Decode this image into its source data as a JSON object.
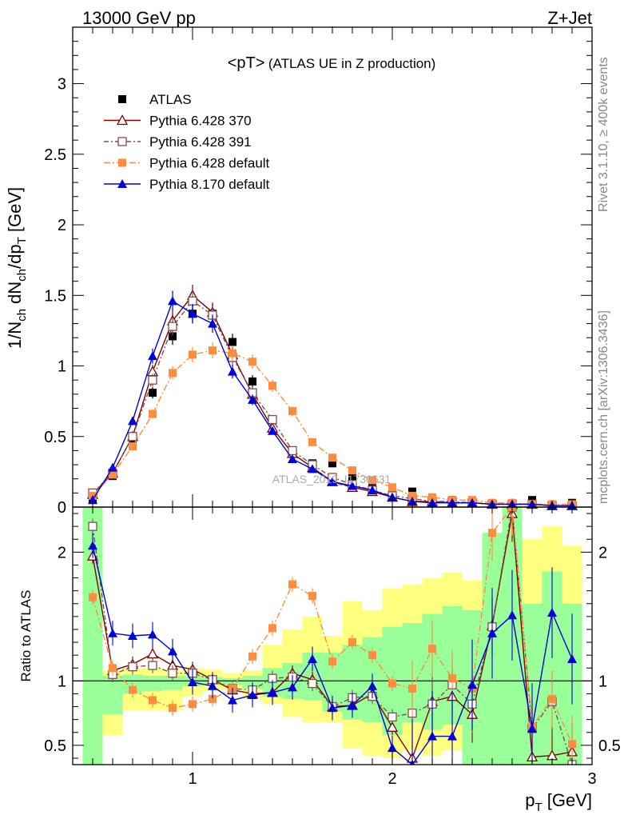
{
  "header": {
    "left": "13000 GeV pp",
    "right": "Z+Jet"
  },
  "side_text": {
    "top": "Rivet 3.1.10, ≥ 400k events",
    "bottom": "mcplots.cern.ch [arXiv:1306.3436]"
  },
  "chart_data": {
    "type": "scatter",
    "title_main": "<pT>",
    "title_sub": "(ATLAS UE in Z production)",
    "ylabel": {
      "main": "1/N",
      "sub1": "ch",
      "mid": " dN",
      "sub2": "ch",
      "tail": "/dp",
      "sub3": "T",
      "unit": " [GeV]"
    },
    "xlabel": {
      "main": "p",
      "sub": "T",
      "unit": " [GeV]"
    },
    "ratio_ylabel": "Ratio to ATLAS",
    "watermark": "ATLAS_2019_I1736531",
    "xlim": [
      0.4,
      3.0
    ],
    "ylim_main": [
      0,
      3.4
    ],
    "ylim_ratio": [
      0.35,
      2.35
    ],
    "x_ticks": [
      "1",
      "2",
      "3"
    ],
    "y_ticks_main": [
      "0",
      "0.5",
      "1",
      "1.5",
      "2",
      "2.5",
      "3"
    ],
    "y_ticks_ratio": [
      "0.5",
      "1",
      "2"
    ],
    "x": [
      0.5,
      0.6,
      0.7,
      0.8,
      0.9,
      1.0,
      1.1,
      1.2,
      1.3,
      1.4,
      1.5,
      1.6,
      1.7,
      1.8,
      1.9,
      2.0,
      2.1,
      2.2,
      2.3,
      2.4,
      2.5,
      2.6,
      2.7,
      2.8,
      2.9
    ],
    "ratio_bands": {
      "yellow_lo": [
        0.35,
        0.58,
        0.77,
        0.77,
        0.77,
        0.88,
        0.92,
        0.94,
        0.86,
        0.82,
        0.72,
        0.68,
        0.68,
        0.48,
        0.42,
        0.4,
        0.46,
        0.42,
        0.46,
        0.4,
        0.35,
        0.35,
        0.35,
        0.35,
        0.35
      ],
      "yellow_hi": [
        2.35,
        1.08,
        1.1,
        1.1,
        1.08,
        1.1,
        1.09,
        1.06,
        1.08,
        1.28,
        1.4,
        1.5,
        1.35,
        1.62,
        1.55,
        1.72,
        1.75,
        1.8,
        1.84,
        1.78,
        1.98,
        2.05,
        2.1,
        2.2,
        2.05
      ],
      "green_lo": [
        0.35,
        0.74,
        0.9,
        0.92,
        0.93,
        0.96,
        0.97,
        0.97,
        0.94,
        0.88,
        0.86,
        0.85,
        0.76,
        0.7,
        0.68,
        0.58,
        0.68,
        0.62,
        0.66,
        0.35,
        0.35,
        0.35,
        0.35,
        0.35,
        0.35
      ],
      "green_hi": [
        2.35,
        1.04,
        1.05,
        1.04,
        1.04,
        1.04,
        1.03,
        1.02,
        1.04,
        1.1,
        1.14,
        1.22,
        1.22,
        1.28,
        1.34,
        1.42,
        1.45,
        1.52,
        1.58,
        1.55,
        2.15,
        2.35,
        1.6,
        1.85,
        1.6
      ]
    },
    "series": [
      {
        "name": "ATLAS",
        "color": "#000000",
        "marker": "square-filled",
        "values": [
          0.05,
          0.22,
          0.47,
          0.81,
          1.21,
          1.37,
          1.37,
          1.17,
          0.89,
          0.62,
          0.4,
          0.31,
          0.31,
          0.21,
          0.14,
          0.11,
          0.11,
          0.06,
          0.05,
          0.04,
          0.02,
          0.01,
          0.05,
          0.02,
          0.03
        ],
        "ratio": []
      },
      {
        "name": "Pythia 6.428 370",
        "color": "#800000",
        "marker": "triangle-open",
        "dash": "",
        "values": [
          0.09,
          0.24,
          0.5,
          0.96,
          1.32,
          1.5,
          1.38,
          1.08,
          0.8,
          0.56,
          0.38,
          0.28,
          0.18,
          0.14,
          0.11,
          0.07,
          0.04,
          0.04,
          0.03,
          0.03,
          0.02,
          0.02,
          0.02,
          0.01,
          0.01
        ],
        "ratio": [
          1.97,
          1.08,
          1.13,
          1.21,
          1.12,
          1.09,
          1.01,
          0.93,
          0.9,
          0.91,
          1.06,
          1.01,
          0.8,
          0.81,
          0.9,
          0.64,
          0.4,
          0.84,
          0.88,
          0.74,
          1.43,
          2.3,
          0.41,
          0.42,
          0.45
        ]
      },
      {
        "name": "Pythia 6.428 391",
        "color": "#7f4f4f",
        "marker": "square-open",
        "dash": "6,3,2,3",
        "values": [
          0.1,
          0.24,
          0.5,
          0.9,
          1.28,
          1.46,
          1.36,
          1.06,
          0.81,
          0.62,
          0.4,
          0.3,
          0.21,
          0.16,
          0.12,
          0.08,
          0.06,
          0.04,
          0.04,
          0.03,
          0.02,
          0.02,
          0.02,
          0.01,
          0.01
        ],
        "ratio": [
          2.2,
          1.05,
          1.11,
          1.12,
          1.06,
          1.06,
          1.01,
          0.94,
          0.93,
          1.02,
          1.03,
          0.98,
          0.8,
          0.87,
          0.88,
          0.72,
          0.75,
          0.82,
          0.97,
          0.82,
          1.42,
          2.35,
          0.63,
          0.84,
          0.35
        ]
      },
      {
        "name": "Pythia 6.428 default",
        "color": "#ff8c3f",
        "marker": "square-filled",
        "dash": "8,3,2,3",
        "values": [
          0.08,
          0.23,
          0.43,
          0.66,
          0.95,
          1.08,
          1.11,
          1.09,
          1.03,
          0.86,
          0.68,
          0.46,
          0.35,
          0.26,
          0.19,
          0.14,
          0.08,
          0.07,
          0.05,
          0.05,
          0.03,
          0.03,
          0.02,
          0.02,
          0.02
        ],
        "ratio": [
          1.65,
          1.1,
          0.93,
          0.85,
          0.79,
          0.82,
          0.86,
          0.94,
          1.19,
          1.41,
          1.75,
          1.66,
          1.15,
          1.3,
          1.2,
          0.98,
          0.94,
          1.25,
          1.02,
          0.94,
          2.15,
          2.35,
          0.65,
          0.86,
          0.51
        ]
      },
      {
        "name": "Pythia 8.170 default",
        "color": "#0000d8",
        "marker": "triangle-filled",
        "dash": "",
        "values": [
          0.05,
          0.28,
          0.61,
          1.07,
          1.46,
          1.37,
          1.3,
          0.96,
          0.76,
          0.54,
          0.34,
          0.27,
          0.18,
          0.15,
          0.12,
          0.07,
          0.04,
          0.03,
          0.03,
          0.03,
          0.02,
          0.02,
          0.02,
          0.01,
          0.01
        ],
        "ratio": [
          2.05,
          1.37,
          1.35,
          1.36,
          1.23,
          0.99,
          0.96,
          0.85,
          0.89,
          0.91,
          0.95,
          1.17,
          0.79,
          0.81,
          0.96,
          0.48,
          0.35,
          0.57,
          0.57,
          0.97,
          1.37,
          1.51,
          0.63,
          1.53,
          1.17
        ]
      }
    ]
  }
}
